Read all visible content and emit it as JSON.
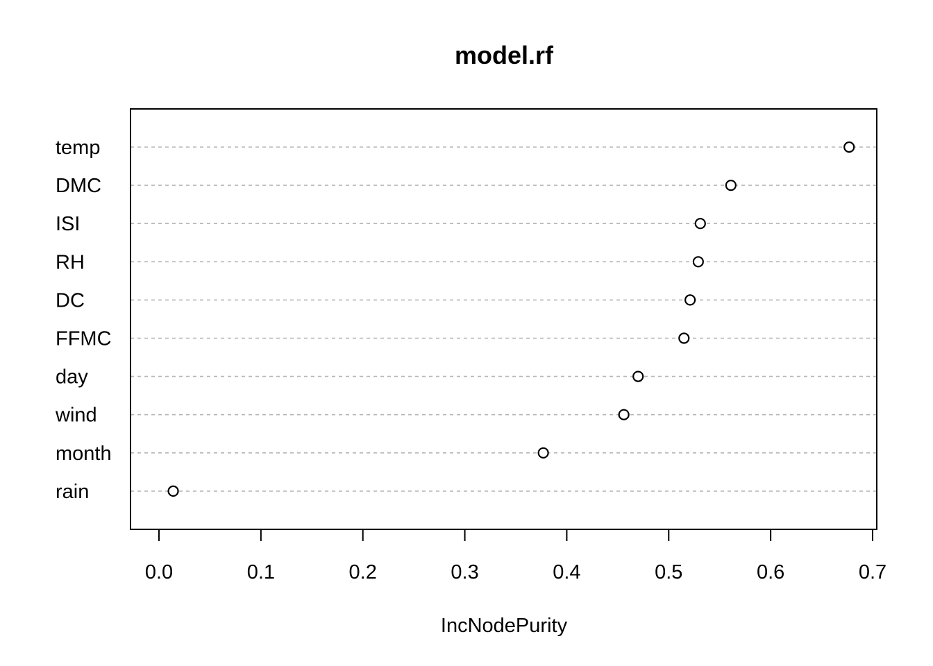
{
  "chart_data": {
    "type": "scatter",
    "title": "model.rf",
    "xlabel": "IncNodePurity",
    "ylabel": "",
    "xlim": [
      0.0,
      0.7
    ],
    "xticks": [
      "0.0",
      "0.1",
      "0.2",
      "0.3",
      "0.4",
      "0.5",
      "0.6",
      "0.7"
    ],
    "grid": "dotted horizontal guides per variable",
    "categories": [
      "temp",
      "DMC",
      "ISI",
      "RH",
      "DC",
      "FFMC",
      "day",
      "wind",
      "month",
      "rain"
    ],
    "values": [
      0.677,
      0.561,
      0.531,
      0.529,
      0.521,
      0.515,
      0.47,
      0.456,
      0.377,
      0.014
    ]
  }
}
